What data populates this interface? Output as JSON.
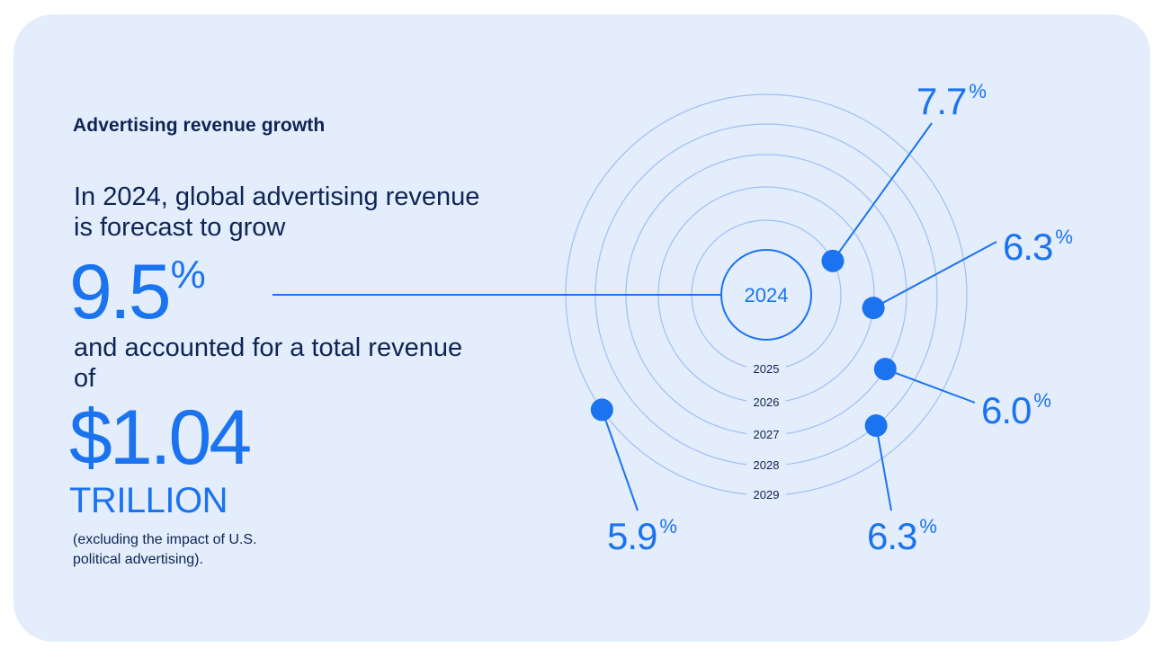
{
  "header": {
    "title": "Advertising revenue growth"
  },
  "summary": {
    "lead_1": "In 2024, global advertising revenue is forecast to grow",
    "growth_value": "9.5",
    "growth_unit": "%",
    "lead_2": "and accounted for a total revenue of",
    "revenue_value": "$1.04",
    "revenue_unit": "TRILLION",
    "note": "(excluding the impact of U.S. political advertising)."
  },
  "colors": {
    "accent": "#1b73f0",
    "text": "#0e2454",
    "ring": "#9fc0f3",
    "background": "#e3edfb"
  },
  "chart_data": {
    "type": "radial-rings",
    "title": "Advertising revenue growth",
    "center_label": "2024",
    "unit": "%",
    "points": [
      {
        "year": "2024",
        "value": "9.5",
        "angle_deg": 180
      },
      {
        "year": "2025",
        "value": "7.7",
        "angle_deg": 27
      },
      {
        "year": "2026",
        "value": "6.3",
        "angle_deg": -7
      },
      {
        "year": "2027",
        "value": "6.0",
        "angle_deg": -32
      },
      {
        "year": "2028",
        "value": "6.3",
        "angle_deg": -50
      },
      {
        "year": "2029",
        "value": "5.9",
        "angle_deg": -145
      }
    ],
    "rings": [
      "2025",
      "2026",
      "2027",
      "2028",
      "2029"
    ]
  }
}
